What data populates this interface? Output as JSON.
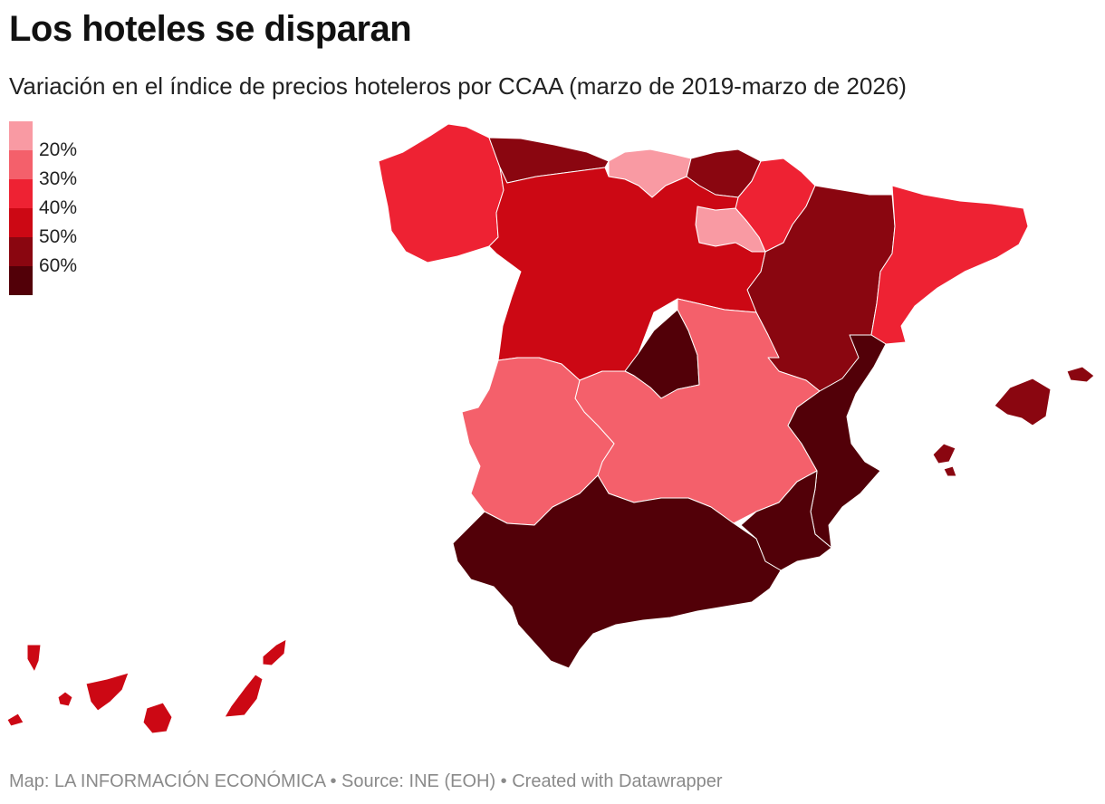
{
  "title": "Los hoteles se disparan",
  "subtitle": "Variación en el índice de precios hoteleros por CCAA (marzo de 2019-marzo de 2026)",
  "legend": {
    "colors": [
      "#f99aa3",
      "#f4606b",
      "#ee2233",
      "#cc0814",
      "#8a0610",
      "#520008"
    ],
    "ticks": [
      "20%",
      "30%",
      "40%",
      "50%",
      "60%"
    ]
  },
  "regions": [
    {
      "name": "Galicia",
      "class_index": 2
    },
    {
      "name": "Asturias",
      "class_index": 4
    },
    {
      "name": "Cantabria",
      "class_index": 0
    },
    {
      "name": "País Vasco",
      "class_index": 4
    },
    {
      "name": "Navarra",
      "class_index": 2
    },
    {
      "name": "La Rioja",
      "class_index": 0
    },
    {
      "name": "Aragón",
      "class_index": 4
    },
    {
      "name": "Cataluña",
      "class_index": 2
    },
    {
      "name": "Castilla y León",
      "class_index": 3
    },
    {
      "name": "Madrid",
      "class_index": 5
    },
    {
      "name": "Castilla-La Mancha",
      "class_index": 1
    },
    {
      "name": "Extremadura",
      "class_index": 1
    },
    {
      "name": "Comunitat Valenciana",
      "class_index": 5
    },
    {
      "name": "Región de Murcia",
      "class_index": 5
    },
    {
      "name": "Andalucía",
      "class_index": 5
    },
    {
      "name": "Illes Balears",
      "class_index": 4
    },
    {
      "name": "Canarias",
      "class_index": 3
    }
  ],
  "footer": "Map: LA INFORMACIÓN ECONÓMICA • Source: INE (EOH) • Created with Datawrapper"
}
